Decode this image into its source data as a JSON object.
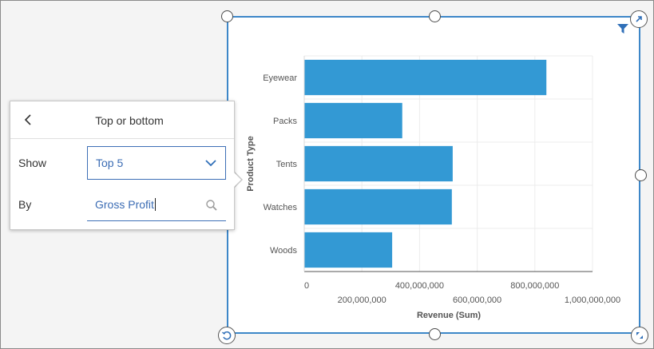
{
  "panel": {
    "title": "Top or bottom",
    "show_label": "Show",
    "show_value": "Top 5",
    "by_label": "By",
    "by_value": "Gross Profit"
  },
  "chart_data": {
    "type": "bar",
    "orientation": "horizontal",
    "categories": [
      "Eyewear",
      "Packs",
      "Tents",
      "Watches",
      "Woods"
    ],
    "series": [
      {
        "values": [
          840000000,
          340000000,
          515000000,
          512000000,
          305000000
        ]
      }
    ],
    "xlabel": "Revenue (Sum)",
    "ylabel": "Product Type",
    "xlim": [
      0,
      1000000000
    ],
    "xticks": [
      "0",
      "200,000,000",
      "400,000,000",
      "600,000,000",
      "800,000,000",
      "1,000,000,000"
    ],
    "bar_color": "#3399d4",
    "grid": true
  },
  "colors": {
    "accent": "#3d87c8",
    "bar": "#3399d4"
  },
  "icons": {
    "filter": "filter-icon",
    "expand": "expand-icon",
    "rotate": "rotate-icon",
    "resize": "resize-icon",
    "back": "chevron-left-icon",
    "dropdown": "chevron-down-icon",
    "search": "search-icon"
  }
}
